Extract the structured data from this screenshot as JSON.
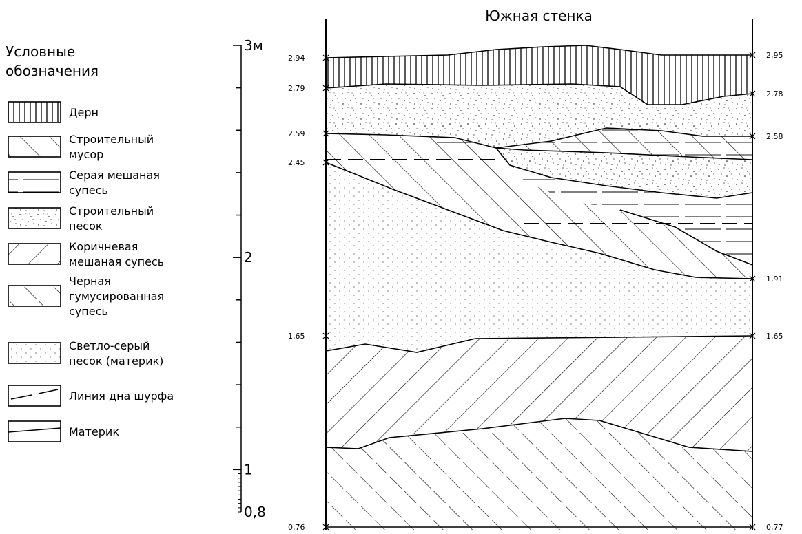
{
  "legend": {
    "title_line1": "Условные",
    "title_line2": "обозначения",
    "items": [
      {
        "lines": [
          "Дерн"
        ],
        "pattern": "sod"
      },
      {
        "lines": [
          "Строительный",
          "мусор"
        ],
        "pattern": "debris"
      },
      {
        "lines": [
          "Серая мешаная",
          "супесь"
        ],
        "pattern": "grey-loam"
      },
      {
        "lines": [
          "Строительный",
          "песок"
        ],
        "pattern": "sand"
      },
      {
        "lines": [
          "Коричневая",
          "мешаная супесь"
        ],
        "pattern": "brown-loam"
      },
      {
        "lines": [
          "Черная",
          "гумусированная",
          "супесь"
        ],
        "pattern": "black-loam"
      },
      {
        "lines": [
          "Светло-серый",
          "песок (материк)"
        ],
        "pattern": "subsoil"
      },
      {
        "lines": [
          "Линия дна шурфа"
        ],
        "pattern": "pit-bottom"
      },
      {
        "lines": [
          "Материк"
        ],
        "pattern": "subsoil-line"
      }
    ]
  },
  "scale": {
    "unit_label": "м",
    "major_labels": [
      {
        "value": 3,
        "text": "3м"
      },
      {
        "value": 2,
        "text": "2"
      },
      {
        "value": 1,
        "text": "1"
      },
      {
        "value": 0.8,
        "text": "0,8"
      }
    ],
    "range": [
      0.8,
      3.0
    ]
  },
  "section": {
    "title": "Южная стенка",
    "left_marks": [
      {
        "value": 2.94,
        "text": "2,94"
      },
      {
        "value": 2.79,
        "text": "2,79"
      },
      {
        "value": 2.59,
        "text": "2,59"
      },
      {
        "value": 2.45,
        "text": "2,45"
      },
      {
        "value": 1.65,
        "text": "1,65"
      },
      {
        "value": 0.76,
        "text": "0,76"
      }
    ],
    "right_marks": [
      {
        "value": 2.95,
        "text": "2,95"
      },
      {
        "value": 2.78,
        "text": "2,78"
      },
      {
        "value": 2.58,
        "text": "2,58"
      },
      {
        "value": 1.91,
        "text": "1,91"
      },
      {
        "value": 1.65,
        "text": "1,65"
      },
      {
        "value": 0.77,
        "text": "0,77"
      }
    ]
  }
}
